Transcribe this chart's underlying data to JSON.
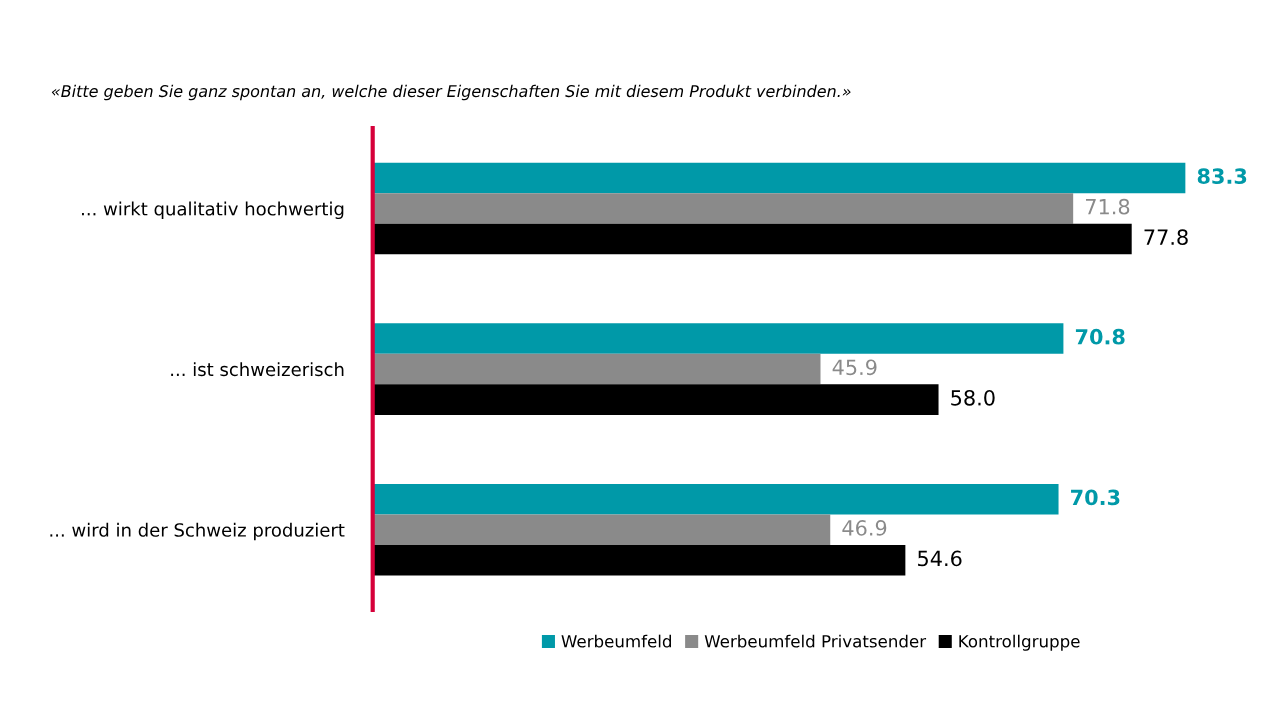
{
  "chart_data": {
    "type": "bar",
    "orientation": "horizontal",
    "title": "«Bitte geben Sie ganz spontan an, welche dieser Eigenschaften Sie mit diesem Produkt verbinden.»",
    "categories": [
      "... wirkt qualitativ hochwertig",
      "... ist schweizerisch",
      "... wird in der Schweiz produziert"
    ],
    "series": [
      {
        "name": "Werbeumfeld",
        "color": "#0099a8",
        "values": [
          83.3,
          70.8,
          70.3
        ],
        "value_labels": [
          "83.3",
          "70.8",
          "70.3"
        ]
      },
      {
        "name": "Werbeumfeld Privatsender",
        "color": "#8a8a8a",
        "values": [
          71.8,
          45.9,
          46.9
        ],
        "value_labels": [
          "71.8",
          "45.9",
          "46.9"
        ]
      },
      {
        "name": "Kontrollgruppe",
        "color": "#000000",
        "values": [
          77.8,
          58.0,
          54.6
        ],
        "value_labels": [
          "77.8",
          "58.0",
          "54.6"
        ]
      }
    ],
    "legend": "bottom",
    "grid": false
  }
}
